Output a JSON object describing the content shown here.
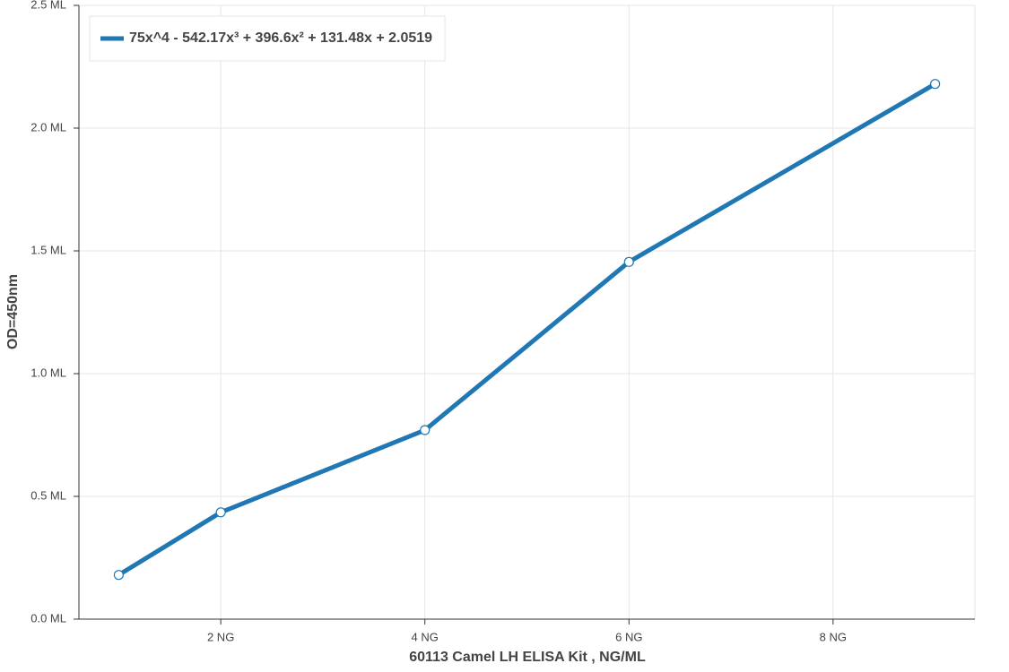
{
  "chart_data": {
    "type": "line",
    "x_label": "60113 Camel LH ELISA Kit , NG/ML",
    "y_label": "OD=450nm",
    "x": [
      1,
      2,
      4,
      6,
      9
    ],
    "series": [
      {
        "name": "75x^4 - 542.17x³ + 396.6x² + 131.48x + 2.0519",
        "color": "#1f77b4",
        "values": [
          0.18,
          0.435,
          0.77,
          1.455,
          2.18
        ]
      }
    ],
    "xlim": [
      0.61,
      9.39
    ],
    "ylim": [
      0,
      2.5
    ],
    "xticks": [
      {
        "value": 2,
        "label": "2 NG"
      },
      {
        "value": 4,
        "label": "4 NG"
      },
      {
        "value": 6,
        "label": "6 NG"
      },
      {
        "value": 8,
        "label": "8 NG"
      }
    ],
    "yticks": [
      {
        "value": 0,
        "label": "0.0 ML"
      },
      {
        "value": 0.5,
        "label": "0.5 ML"
      },
      {
        "value": 1,
        "label": "1.0 ML"
      },
      {
        "value": 1.5,
        "label": "1.5 ML"
      },
      {
        "value": 2,
        "label": "2.0 ML"
      },
      {
        "value": 2.5,
        "label": "2.5 ML"
      }
    ],
    "grid": true,
    "legend": "upper-left"
  }
}
